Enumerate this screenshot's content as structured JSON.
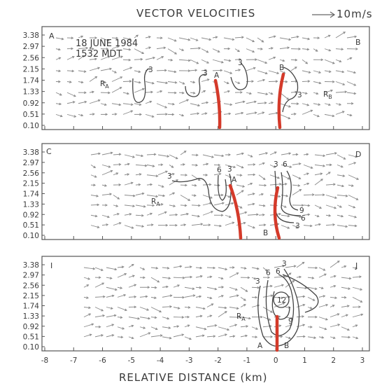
{
  "title": "VECTOR VELOCITIES",
  "scale_label": "10m/s",
  "date": "18 JUNE 1984",
  "time": "1532 MDT",
  "xlabel": "RELATIVE DISTANCE (km)",
  "heights": [
    "3.38",
    "2.97",
    "2.56",
    "2.15",
    "1.74",
    "1.33",
    "0.92",
    "0.51",
    "0.10"
  ],
  "xticks": [
    "-8",
    "-7",
    "-6",
    "-5",
    "-4",
    "-3",
    "-2",
    "-1",
    "0",
    "1",
    "2",
    "3"
  ],
  "panels": [
    {
      "left_letter": "A",
      "right_letter": "B",
      "labels": [
        {
          "text": "RA",
          "kind": "region"
        },
        {
          "text": "RB",
          "kind": "region"
        },
        {
          "text": "A",
          "kind": "line"
        },
        {
          "text": "B",
          "kind": "line"
        },
        {
          "text": "3",
          "kind": "contour"
        },
        {
          "text": "3",
          "kind": "contour"
        },
        {
          "text": "3",
          "kind": "contour"
        },
        {
          "text": "3",
          "kind": "contour"
        }
      ]
    },
    {
      "left_letter": "C",
      "right_letter": "D",
      "labels": [
        {
          "text": "RA",
          "kind": "region"
        },
        {
          "text": "A",
          "kind": "line"
        },
        {
          "text": "B",
          "kind": "line"
        },
        {
          "text": "3",
          "kind": "contour"
        },
        {
          "text": "6",
          "kind": "contour"
        },
        {
          "text": "3",
          "kind": "contour"
        },
        {
          "text": "3",
          "kind": "contour"
        },
        {
          "text": "6",
          "kind": "contour"
        },
        {
          "text": "9",
          "kind": "contour"
        },
        {
          "text": "6",
          "kind": "contour"
        },
        {
          "text": "3",
          "kind": "contour"
        }
      ]
    },
    {
      "left_letter": "I",
      "right_letter": "J",
      "labels": [
        {
          "text": "RA",
          "kind": "region"
        },
        {
          "text": "A",
          "kind": "line"
        },
        {
          "text": "B",
          "kind": "line"
        },
        {
          "text": "3",
          "kind": "contour"
        },
        {
          "text": "6",
          "kind": "contour"
        },
        {
          "text": "6",
          "kind": "contour"
        },
        {
          "text": "3",
          "kind": "contour"
        },
        {
          "text": "12",
          "kind": "contour"
        },
        {
          "text": "9",
          "kind": "contour"
        }
      ]
    }
  ],
  "colors": {
    "convergence_line": "#d43a2a",
    "contour": "#444444",
    "vector": "#8a8a8a",
    "frame": "#555555"
  }
}
